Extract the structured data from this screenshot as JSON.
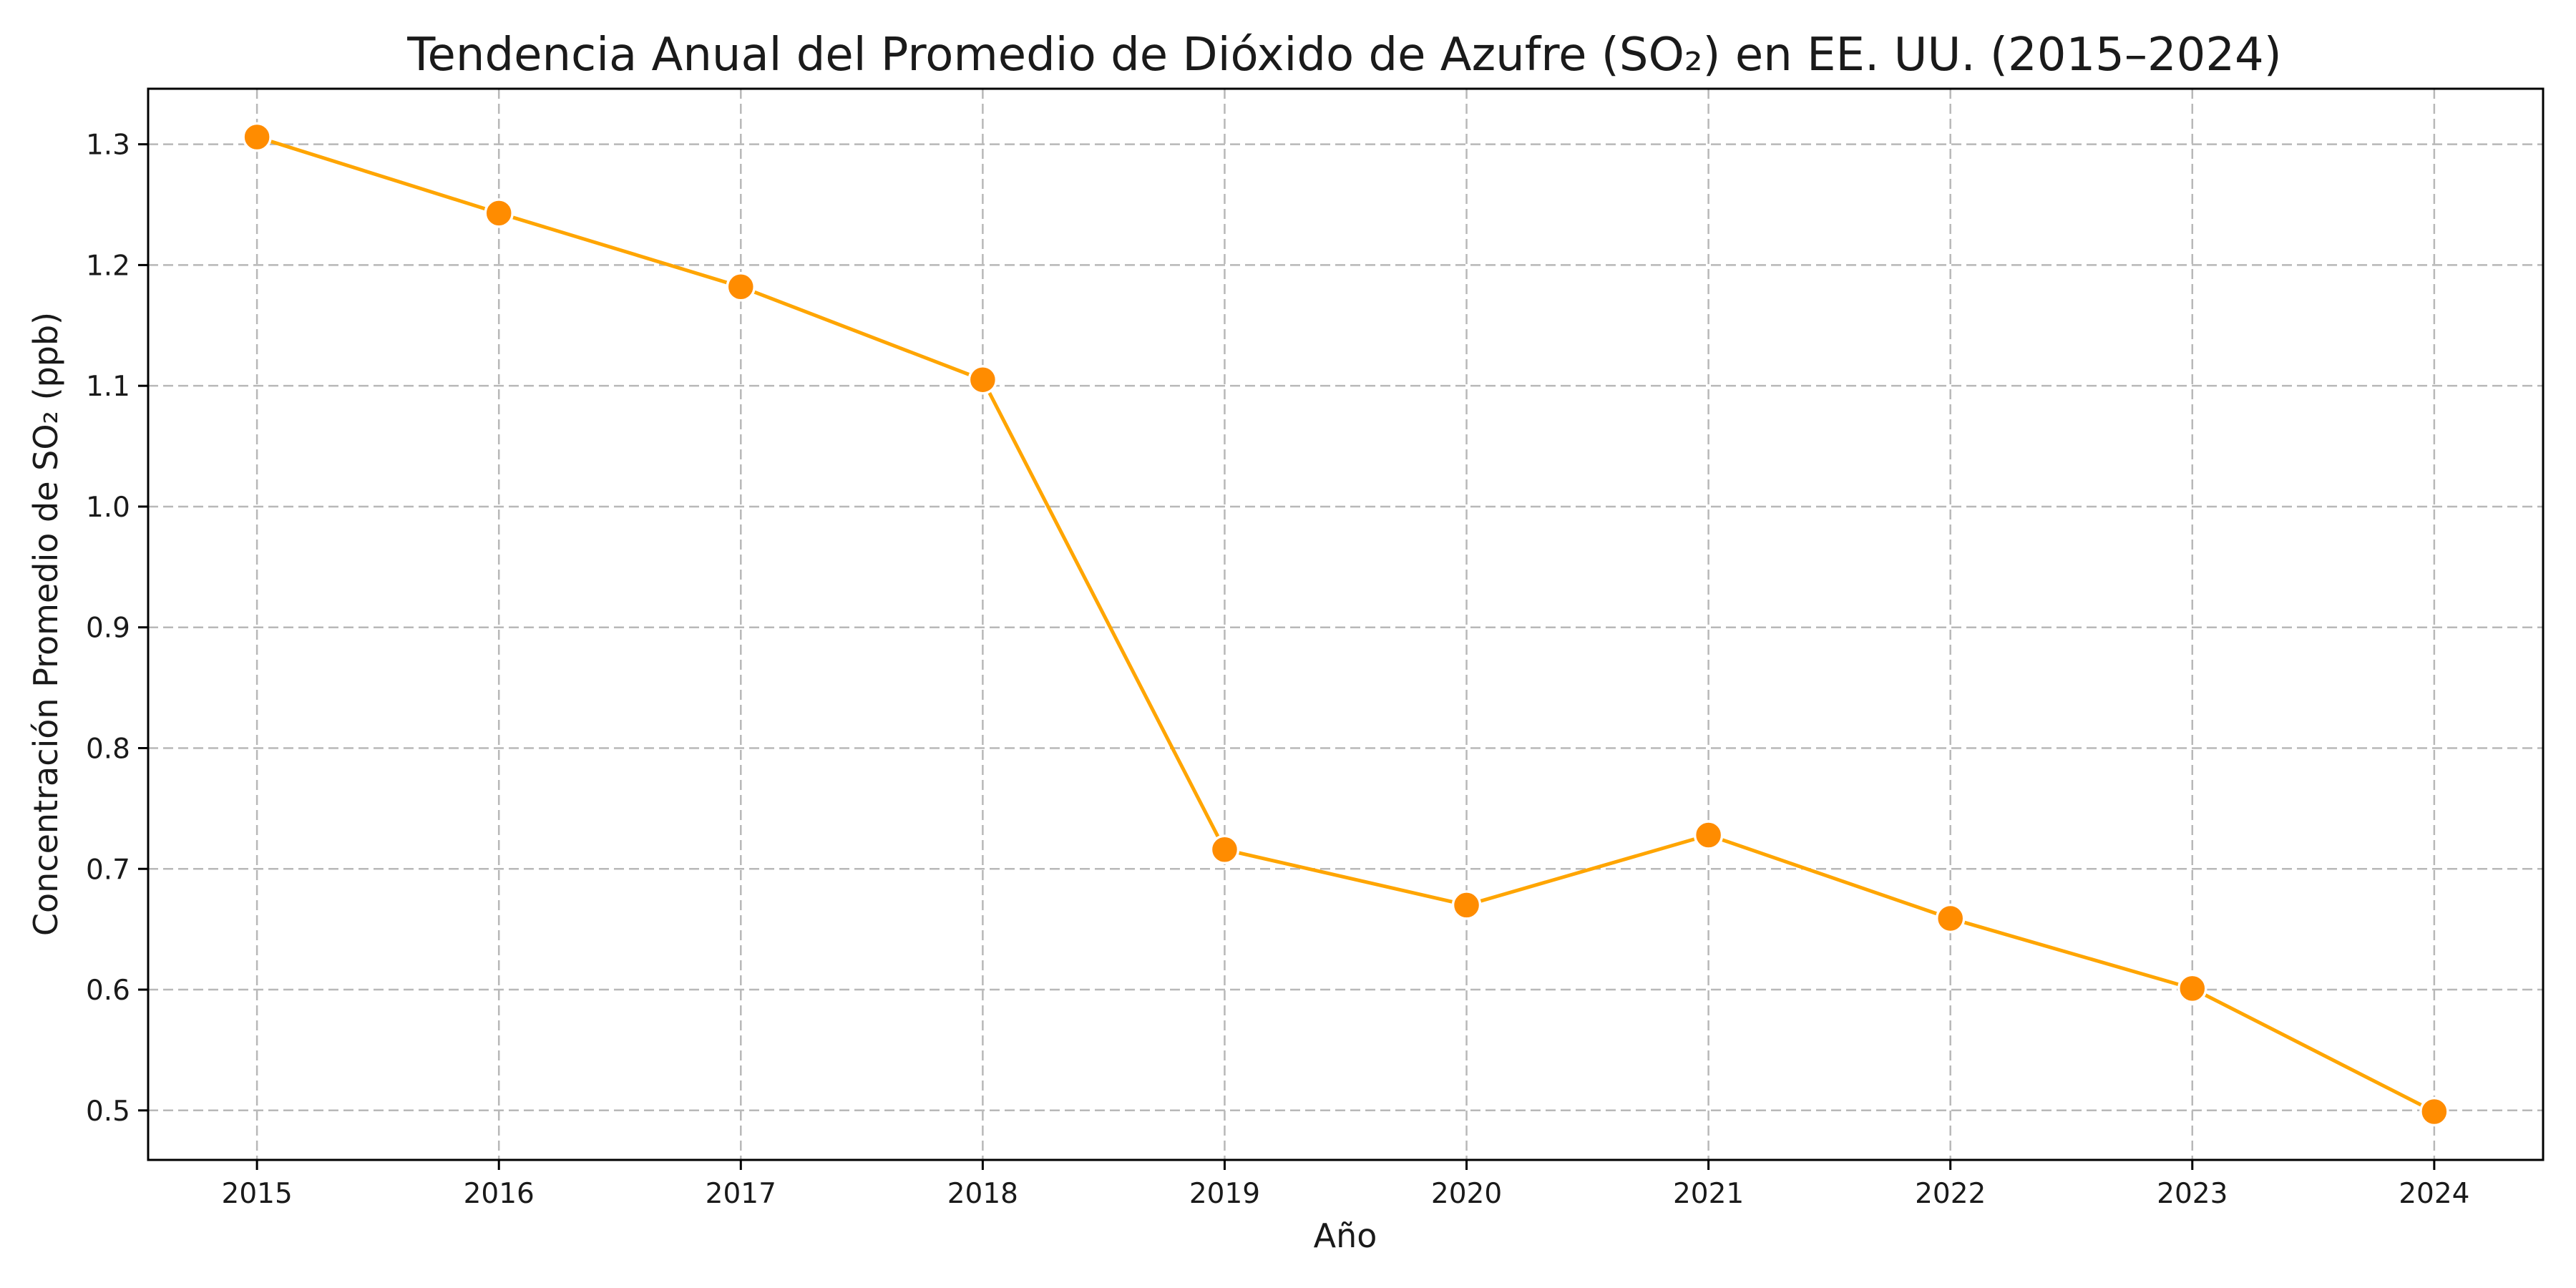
{
  "colors": {
    "line": "#FFA500",
    "marker": "#FF8C00",
    "marker_edge": "#FFFFFF",
    "grid": "#B8B8B8"
  },
  "chart_data": {
    "type": "line",
    "title": "Tendencia Anual del Promedio de Dióxido de Azufre (SO₂) en EE. UU. (2015–2024)",
    "xlabel": "Año",
    "ylabel": "Concentración Promedio de SO₂ (ppb)",
    "x": [
      2015,
      2016,
      2017,
      2018,
      2019,
      2020,
      2021,
      2022,
      2023,
      2024
    ],
    "x_tick_labels": [
      "2015",
      "2016",
      "2017",
      "2018",
      "2019",
      "2020",
      "2021",
      "2022",
      "2023",
      "2024"
    ],
    "series": [
      {
        "values": [
          1.306,
          1.243,
          1.182,
          1.105,
          0.716,
          0.67,
          0.728,
          0.659,
          0.601,
          0.499
        ]
      }
    ],
    "xlim": [
      2014.55,
      2024.45
    ],
    "ylim": [
      0.459,
      1.346
    ],
    "y_ticks": [
      0.5,
      0.6,
      0.7,
      0.8,
      0.9,
      1.0,
      1.1,
      1.2,
      1.3
    ],
    "y_tick_labels": [
      "0.5",
      "0.6",
      "0.7",
      "0.8",
      "0.9",
      "1.0",
      "1.1",
      "1.2",
      "1.3"
    ],
    "grid": true,
    "grid_style": "dashed",
    "legend": "none",
    "marker": "circle"
  }
}
